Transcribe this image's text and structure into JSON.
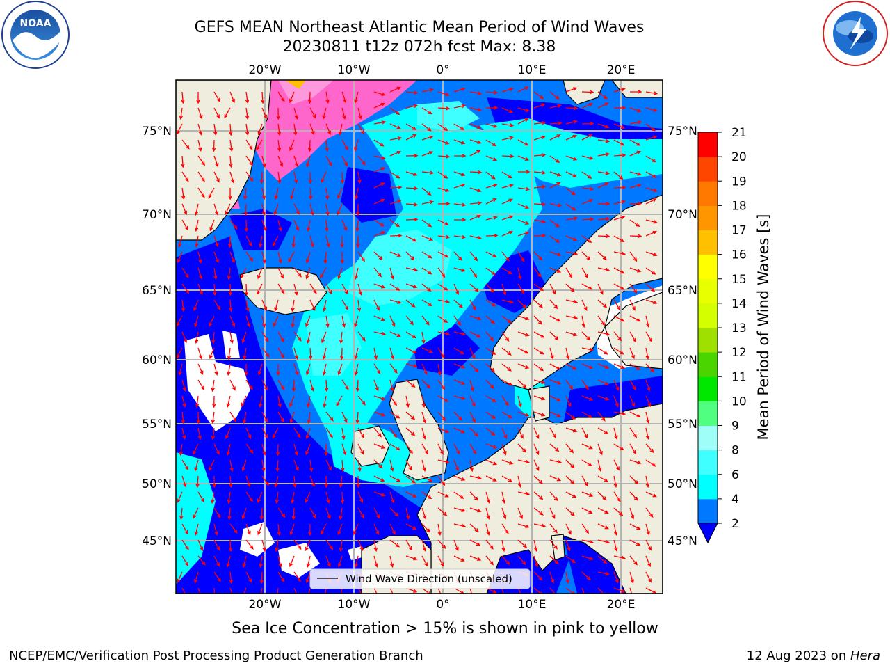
{
  "header": {
    "title_line1": "GEFS MEAN Northeast Atlantic Mean Period of Wind Waves",
    "title_line2": "20230811 t12z 072h fcst   Max: 8.38"
  },
  "logos": {
    "left": "NOAA",
    "right": "NATIONAL WEATHER SERVICE"
  },
  "map": {
    "lon_ticks_top": [
      "20°W",
      "10°W",
      "0°",
      "10°E",
      "20°E"
    ],
    "lon_ticks_bottom": [
      "20°W",
      "10°W",
      "0°",
      "10°E",
      "20°E"
    ],
    "lat_ticks_left": [
      "75°N",
      "70°N",
      "65°N",
      "60°N",
      "55°N",
      "50°N",
      "45°N"
    ],
    "lat_ticks_right": [
      "75°N",
      "70°N",
      "65°N",
      "60°N",
      "55°N",
      "50°N",
      "45°N"
    ],
    "legend_label": "Wind Wave Direction (unscaled)",
    "colors": {
      "land": "#efedde",
      "ice": "#ff66cc",
      "arrow": "#ff0000"
    }
  },
  "colorbar": {
    "label": "Mean Period of Wind Waves [s]",
    "ticks": [
      "2",
      "4",
      "6",
      "8",
      "9",
      "10",
      "11",
      "12",
      "13",
      "14",
      "15",
      "16",
      "17",
      "18",
      "19",
      "20",
      "21"
    ],
    "colors": [
      "#0000ff",
      "#0078ff",
      "#00ffff",
      "#40ffff",
      "#9ffff8",
      "#50ff80",
      "#00e800",
      "#4ad400",
      "#a0e000",
      "#d4ff00",
      "#e8ff00",
      "#ffff00",
      "#ffc000",
      "#ff9600",
      "#ff7800",
      "#ff4600",
      "#ff0000"
    ]
  },
  "caption": "Sea Ice Concentration > 15% is shown in pink to yellow",
  "footer": {
    "left": "NCEP/EMC/Verification Post Processing Product Generation Branch",
    "right_prefix": "12 Aug 2023 on ",
    "right_machine": "Hera"
  }
}
